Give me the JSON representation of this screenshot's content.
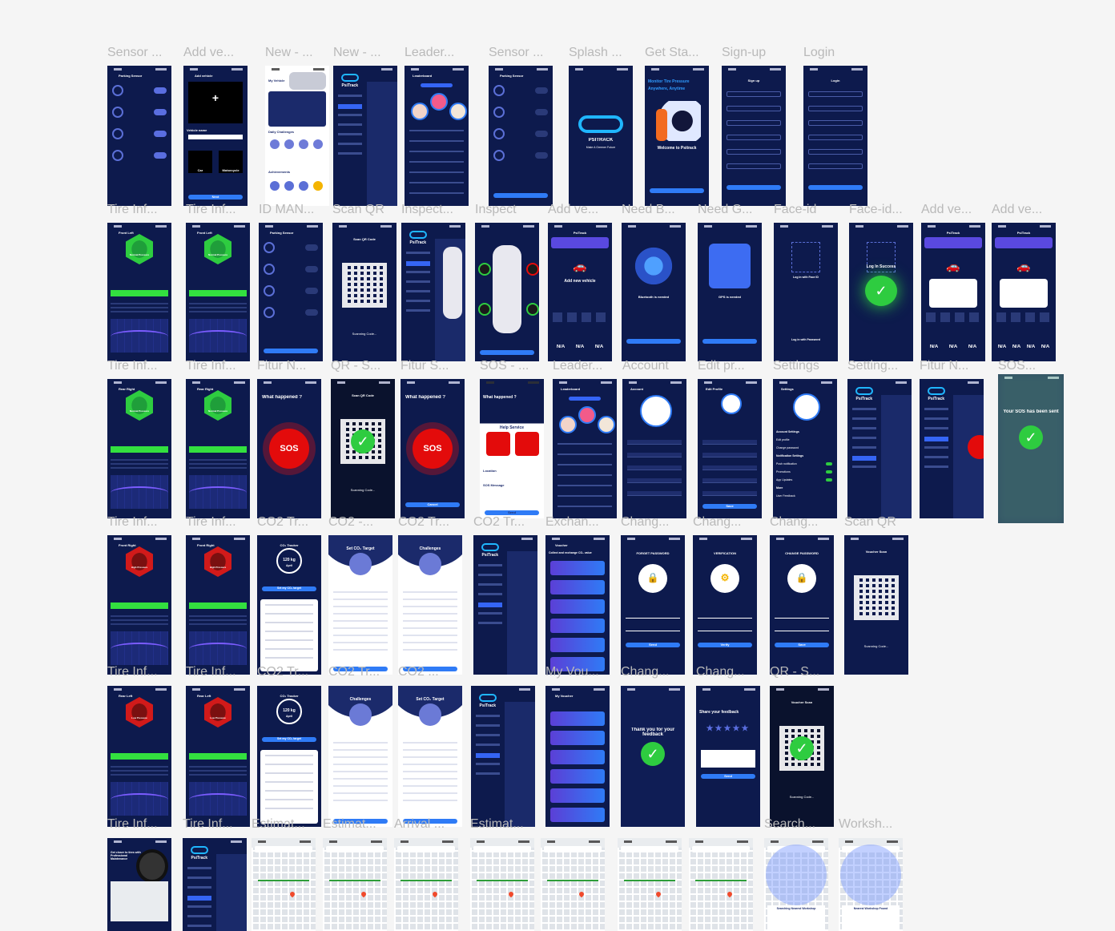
{
  "app": "Figma canvas - PsiTrack app screens",
  "rows": [
    {
      "labels": [
        "Sensor ...",
        "Add ve...",
        "New - ...",
        "New - ...",
        "Leader...",
        "Sensor ...",
        "Splash ...",
        "Get Sta...",
        "Sign-up",
        "Login"
      ],
      "frames": [
        {
          "title": "Parking Sensor",
          "kind": "sensor"
        },
        {
          "title": "Add vehicle",
          "kind": "addvehicle",
          "extra": [
            "Vehicle name",
            "Car",
            "Motorcycle",
            "Next"
          ]
        },
        {
          "title": "My Vehicle",
          "kind": "dashboard-light",
          "extra": [
            "Daily Challenges",
            "Achievements"
          ]
        },
        {
          "title": "PsiTrack",
          "kind": "menu"
        },
        {
          "title": "Leaderboard",
          "kind": "leaderboard"
        },
        {
          "title": "Parking Sensor",
          "kind": "sensor2"
        },
        {
          "title": "PSITRACK",
          "kind": "splash",
          "extra": [
            "Make A Greener Future"
          ]
        },
        {
          "title": "Monitor Tire Pressure Anywhere, Anytime",
          "kind": "getstarted",
          "extra": [
            "Welcome to Psitrack"
          ]
        },
        {
          "title": "Sign up",
          "kind": "form"
        },
        {
          "title": "Login",
          "kind": "form"
        }
      ]
    },
    {
      "labels": [
        "Tire Inf...",
        "Tire Inf...",
        "ID MAN...",
        "Scan QR",
        "Inspect...",
        "Inspect",
        "Add ve...",
        "Need B...",
        "Need G...",
        "Face-id",
        "Face-id...",
        "Add ve...",
        "Add ve..."
      ],
      "frames": [
        {
          "title": "Front Left",
          "kind": "tire",
          "tone": "green",
          "extra": [
            "Normal Pressure"
          ]
        },
        {
          "title": "Front Left",
          "kind": "tire",
          "tone": "green",
          "extra": [
            "Normal Pressure"
          ]
        },
        {
          "title": "Parking Sensor",
          "kind": "sensor3"
        },
        {
          "title": "Scan QR Code",
          "kind": "qr",
          "extra": [
            "Scanning Code..."
          ]
        },
        {
          "title": "PsiTrack",
          "kind": "menu-car"
        },
        {
          "title": "",
          "kind": "inspect"
        },
        {
          "title": "PsiTrack",
          "kind": "addnew",
          "extra": [
            "Add new vehicle",
            "N/A",
            "N/A",
            "N/A"
          ]
        },
        {
          "title": "Bluetooth is needed",
          "kind": "needb"
        },
        {
          "title": "GPS is needed",
          "kind": "needg"
        },
        {
          "title": "",
          "kind": "faceid",
          "extra": [
            "Log in with Face ID",
            "Log in with Password"
          ]
        },
        {
          "title": "Log In Success",
          "kind": "faceid-ok"
        },
        {
          "title": "PsiTrack",
          "kind": "addmodal",
          "extra": [
            "N/A",
            "N/A",
            "N/A"
          ]
        },
        {
          "title": "PsiTrack",
          "kind": "addmodal",
          "extra": [
            "N/A",
            "N/A",
            "N/A",
            "N/A"
          ]
        }
      ]
    },
    {
      "labels": [
        "Tire Inf...",
        "Tire Inf...",
        "Fitur N...",
        "QR - S...",
        "Fitur S...",
        "SOS - ...",
        "Leader...",
        "Account",
        "Edit pr...",
        "Settings",
        "Setting...",
        "Fitur N...",
        "SOS..."
      ],
      "frames": [
        {
          "title": "Rear Right",
          "kind": "tire",
          "tone": "green",
          "extra": [
            "Normal Pressure"
          ]
        },
        {
          "title": "Rear Right",
          "kind": "tire",
          "tone": "green",
          "extra": [
            "Normal Pressure"
          ]
        },
        {
          "title": "What happened ?",
          "kind": "sos",
          "extra": [
            "SOS"
          ]
        },
        {
          "title": "Scan QR Code",
          "kind": "qr-ok",
          "extra": [
            "Scanning Code..."
          ]
        },
        {
          "title": "What happened ?",
          "kind": "sos",
          "extra": [
            "SOS",
            "Cancel"
          ]
        },
        {
          "title": "What happened ?",
          "kind": "help",
          "extra": [
            "Help Service",
            "Location",
            "SOS Message",
            "Send"
          ]
        },
        {
          "title": "Leaderboard",
          "kind": "leaderboard"
        },
        {
          "title": "Account",
          "kind": "account"
        },
        {
          "title": "Edit Profile",
          "kind": "edit",
          "extra": [
            "Save"
          ]
        },
        {
          "title": "Settings",
          "kind": "settings",
          "extra": [
            "Account Settings",
            "Edit profile",
            "Change password",
            "Notification Settings",
            "Push notification",
            "Promotions",
            "App Updates",
            "More",
            "User Feedback"
          ]
        },
        {
          "title": "PsiTrack",
          "kind": "menu-settings"
        },
        {
          "title": "PsiTrack",
          "kind": "menu-sos"
        },
        {
          "title": "Your SOS has been sent",
          "kind": "sos-sent"
        }
      ]
    },
    {
      "labels": [
        "Tire Inf...",
        "Tire Inf...",
        "CO2 Tr...",
        "CO2 -...",
        "CO2 Tr...",
        "CO2 Tr...",
        "Exchan...",
        "Chang...",
        "Chang...",
        "Chang...",
        "Scan QR"
      ],
      "frames": [
        {
          "title": "Front Right",
          "kind": "tire",
          "tone": "red",
          "extra": [
            "High Pressure"
          ]
        },
        {
          "title": "Front Right",
          "kind": "tire",
          "tone": "red",
          "extra": [
            "High Pressure"
          ]
        },
        {
          "title": "CO₂ Tracker",
          "kind": "co2",
          "extra": [
            "120 kg",
            "April",
            "Set my CO₂ target"
          ]
        },
        {
          "title": "Set CO₂ Target",
          "kind": "co2target"
        },
        {
          "title": "Challenges",
          "kind": "challenges"
        },
        {
          "title": "PsiTrack",
          "kind": "menu-co2"
        },
        {
          "title": "Voucher",
          "kind": "voucher",
          "extra": [
            "Collect and exchange CO₂ value"
          ]
        },
        {
          "title": "FORGET PASSWORD",
          "kind": "lock",
          "extra": [
            "Send"
          ]
        },
        {
          "title": "VERIFICATION",
          "kind": "verify",
          "extra": [
            "Verify"
          ]
        },
        {
          "title": "CHANGE PASSWORD",
          "kind": "lock",
          "extra": [
            "Save"
          ]
        },
        {
          "title": "Voucher Scan",
          "kind": "qr",
          "extra": [
            "Scanning Code..."
          ]
        }
      ]
    },
    {
      "labels": [
        "Tire Inf...",
        "Tire Inf...",
        "CO2 Tr...",
        "CO2 Tr...",
        "CO2 ...",
        "",
        "My Vou...",
        "Chang...",
        "Chang...",
        "QR - S..."
      ],
      "frames": [
        {
          "title": "Rear Left",
          "kind": "tire",
          "tone": "red",
          "extra": [
            "Low Pressure"
          ]
        },
        {
          "title": "Rear Left",
          "kind": "tire",
          "tone": "red",
          "extra": [
            "Low Pressure"
          ]
        },
        {
          "title": "CO₂ Tracker",
          "kind": "co2",
          "extra": [
            "120 kg",
            "April",
            "Set my CO₂ target"
          ]
        },
        {
          "title": "Challenges",
          "kind": "challenges"
        },
        {
          "title": "Set CO₂ Target",
          "kind": "co2target"
        },
        {
          "title": "PsiTrack",
          "kind": "menu-co2"
        },
        {
          "title": "My Voucher",
          "kind": "voucher2"
        },
        {
          "title": "Thank you for your feedback",
          "kind": "thanks"
        },
        {
          "title": "Share your feedback",
          "kind": "feedback",
          "extra": [
            "★★★★★",
            "Send"
          ]
        },
        {
          "title": "Voucher Scan",
          "kind": "qr-ok",
          "extra": [
            "Scanning Code..."
          ]
        }
      ]
    },
    {
      "labels": [
        "Tire Inf...",
        "Tire Inf...",
        "Estimat...",
        "Estimat...",
        "Arrival ...",
        "Estimat...",
        "",
        "",
        "",
        "Search...",
        "Worksh..."
      ],
      "frames": [
        {
          "title": "Get closer to tires with Professional Maintenance",
          "kind": "workshop-home"
        },
        {
          "title": "PsiTrack",
          "kind": "menu-map"
        },
        {
          "title": "",
          "kind": "map"
        },
        {
          "title": "",
          "kind": "map"
        },
        {
          "title": "",
          "kind": "map"
        },
        {
          "title": "",
          "kind": "map"
        },
        {
          "title": "",
          "kind": "map"
        },
        {
          "title": "",
          "kind": "map"
        },
        {
          "title": "",
          "kind": "map"
        },
        {
          "title": "Searching Nearest Workshop",
          "kind": "map-search"
        },
        {
          "title": "Nearest Workshop Found",
          "kind": "map-found"
        }
      ]
    }
  ],
  "colors": {
    "bg": "#f5f5f5",
    "frame": "#0d1a4d",
    "accent": "#2f7bf6",
    "green": "#33e03f",
    "red": "#e30b0b",
    "label": "#b9b9b9"
  }
}
